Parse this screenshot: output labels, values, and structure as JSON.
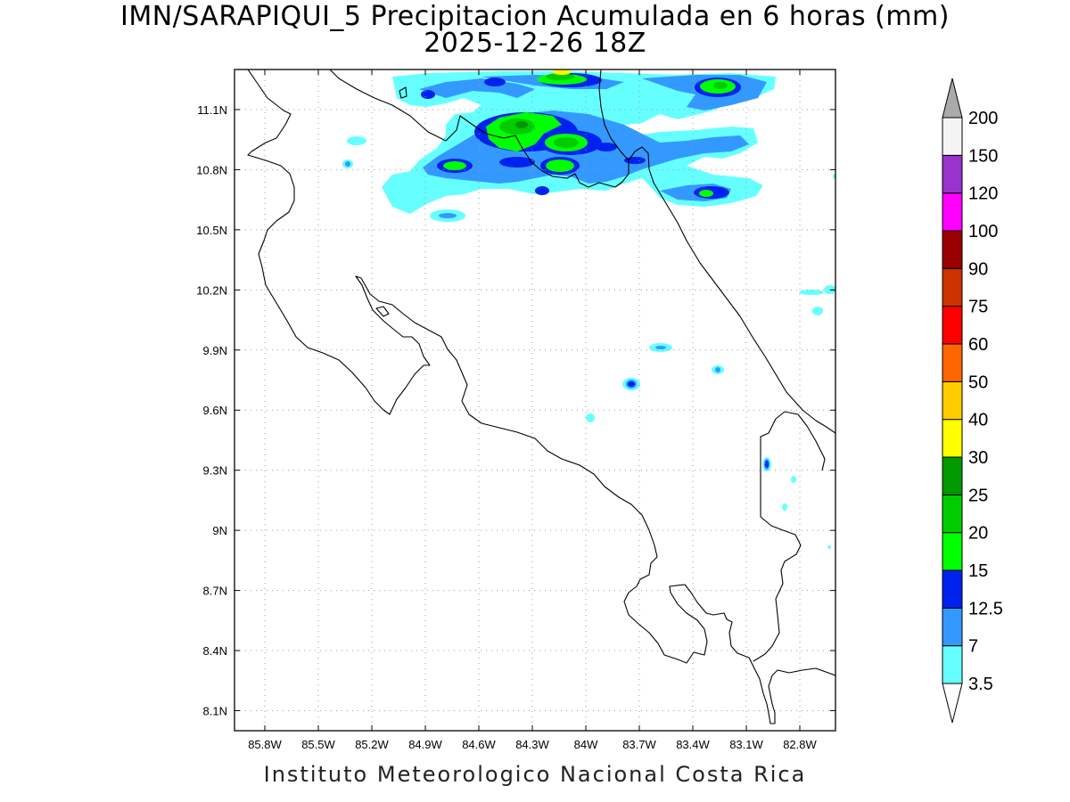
{
  "title": {
    "line1": "IMN/SARAPIQUI_5 Precipitacion Acumulada en 6 horas (mm)",
    "line2": "2025-12-26 18Z"
  },
  "footer": "Instituto Meteorologico Nacional Costa Rica",
  "map": {
    "lon_range": [
      -85.97,
      -82.6
    ],
    "lat_range": [
      8.0,
      11.3
    ],
    "lon_ticks": [
      -85.8,
      -85.5,
      -85.2,
      -84.9,
      -84.6,
      -84.3,
      -84.0,
      -83.7,
      -83.4,
      -83.1,
      -82.8
    ],
    "lon_labels": [
      "85.8W",
      "85.5W",
      "85.2W",
      "84.9W",
      "84.6W",
      "84.3W",
      "84W",
      "83.7W",
      "83.4W",
      "83.1W",
      "82.8W"
    ],
    "lat_ticks": [
      11.1,
      10.8,
      10.5,
      10.2,
      9.9,
      9.6,
      9.3,
      9.0,
      8.7,
      8.4,
      8.1
    ],
    "lat_labels": [
      "11.1N",
      "10.8N",
      "10.5N",
      "10.2N",
      "9.9N",
      "9.6N",
      "9.3N",
      "9N",
      "8.7N",
      "8.4N",
      "8.1N"
    ],
    "grid": "dotted"
  },
  "colorbar": {
    "labels": [
      "3.5",
      "7",
      "12.5",
      "15",
      "20",
      "25",
      "30",
      "40",
      "50",
      "60",
      "75",
      "90",
      "100",
      "120",
      "150",
      "200"
    ],
    "colors": [
      "#66ffff",
      "#3399ff",
      "#0022ee",
      "#00ff00",
      "#00cc00",
      "#009900",
      "#ffff00",
      "#ffcc00",
      "#ff6600",
      "#ff0000",
      "#cc3300",
      "#990000",
      "#ff00ff",
      "#9933cc",
      "#f4f4f4"
    ],
    "cap_top_color": "#aaaaaa",
    "cap_bottom_color": "#ffffff"
  },
  "precip_cells": [
    {
      "lon": -84.32,
      "lat": 11.05,
      "value": 25
    },
    {
      "lon": -84.05,
      "lat": 10.95,
      "value": 20
    },
    {
      "lon": -84.15,
      "lat": 11.22,
      "value": 30
    },
    {
      "lon": -83.2,
      "lat": 11.19,
      "value": 20
    },
    {
      "lon": -84.69,
      "lat": 10.82,
      "value": 20
    },
    {
      "lon": -84.1,
      "lat": 10.83,
      "value": 20
    },
    {
      "lon": -83.2,
      "lat": 10.68,
      "value": 15
    },
    {
      "lon": -83.7,
      "lat": 9.73,
      "value": 12.5
    },
    {
      "lon": -82.9,
      "lat": 9.33,
      "value": 12.5
    }
  ]
}
